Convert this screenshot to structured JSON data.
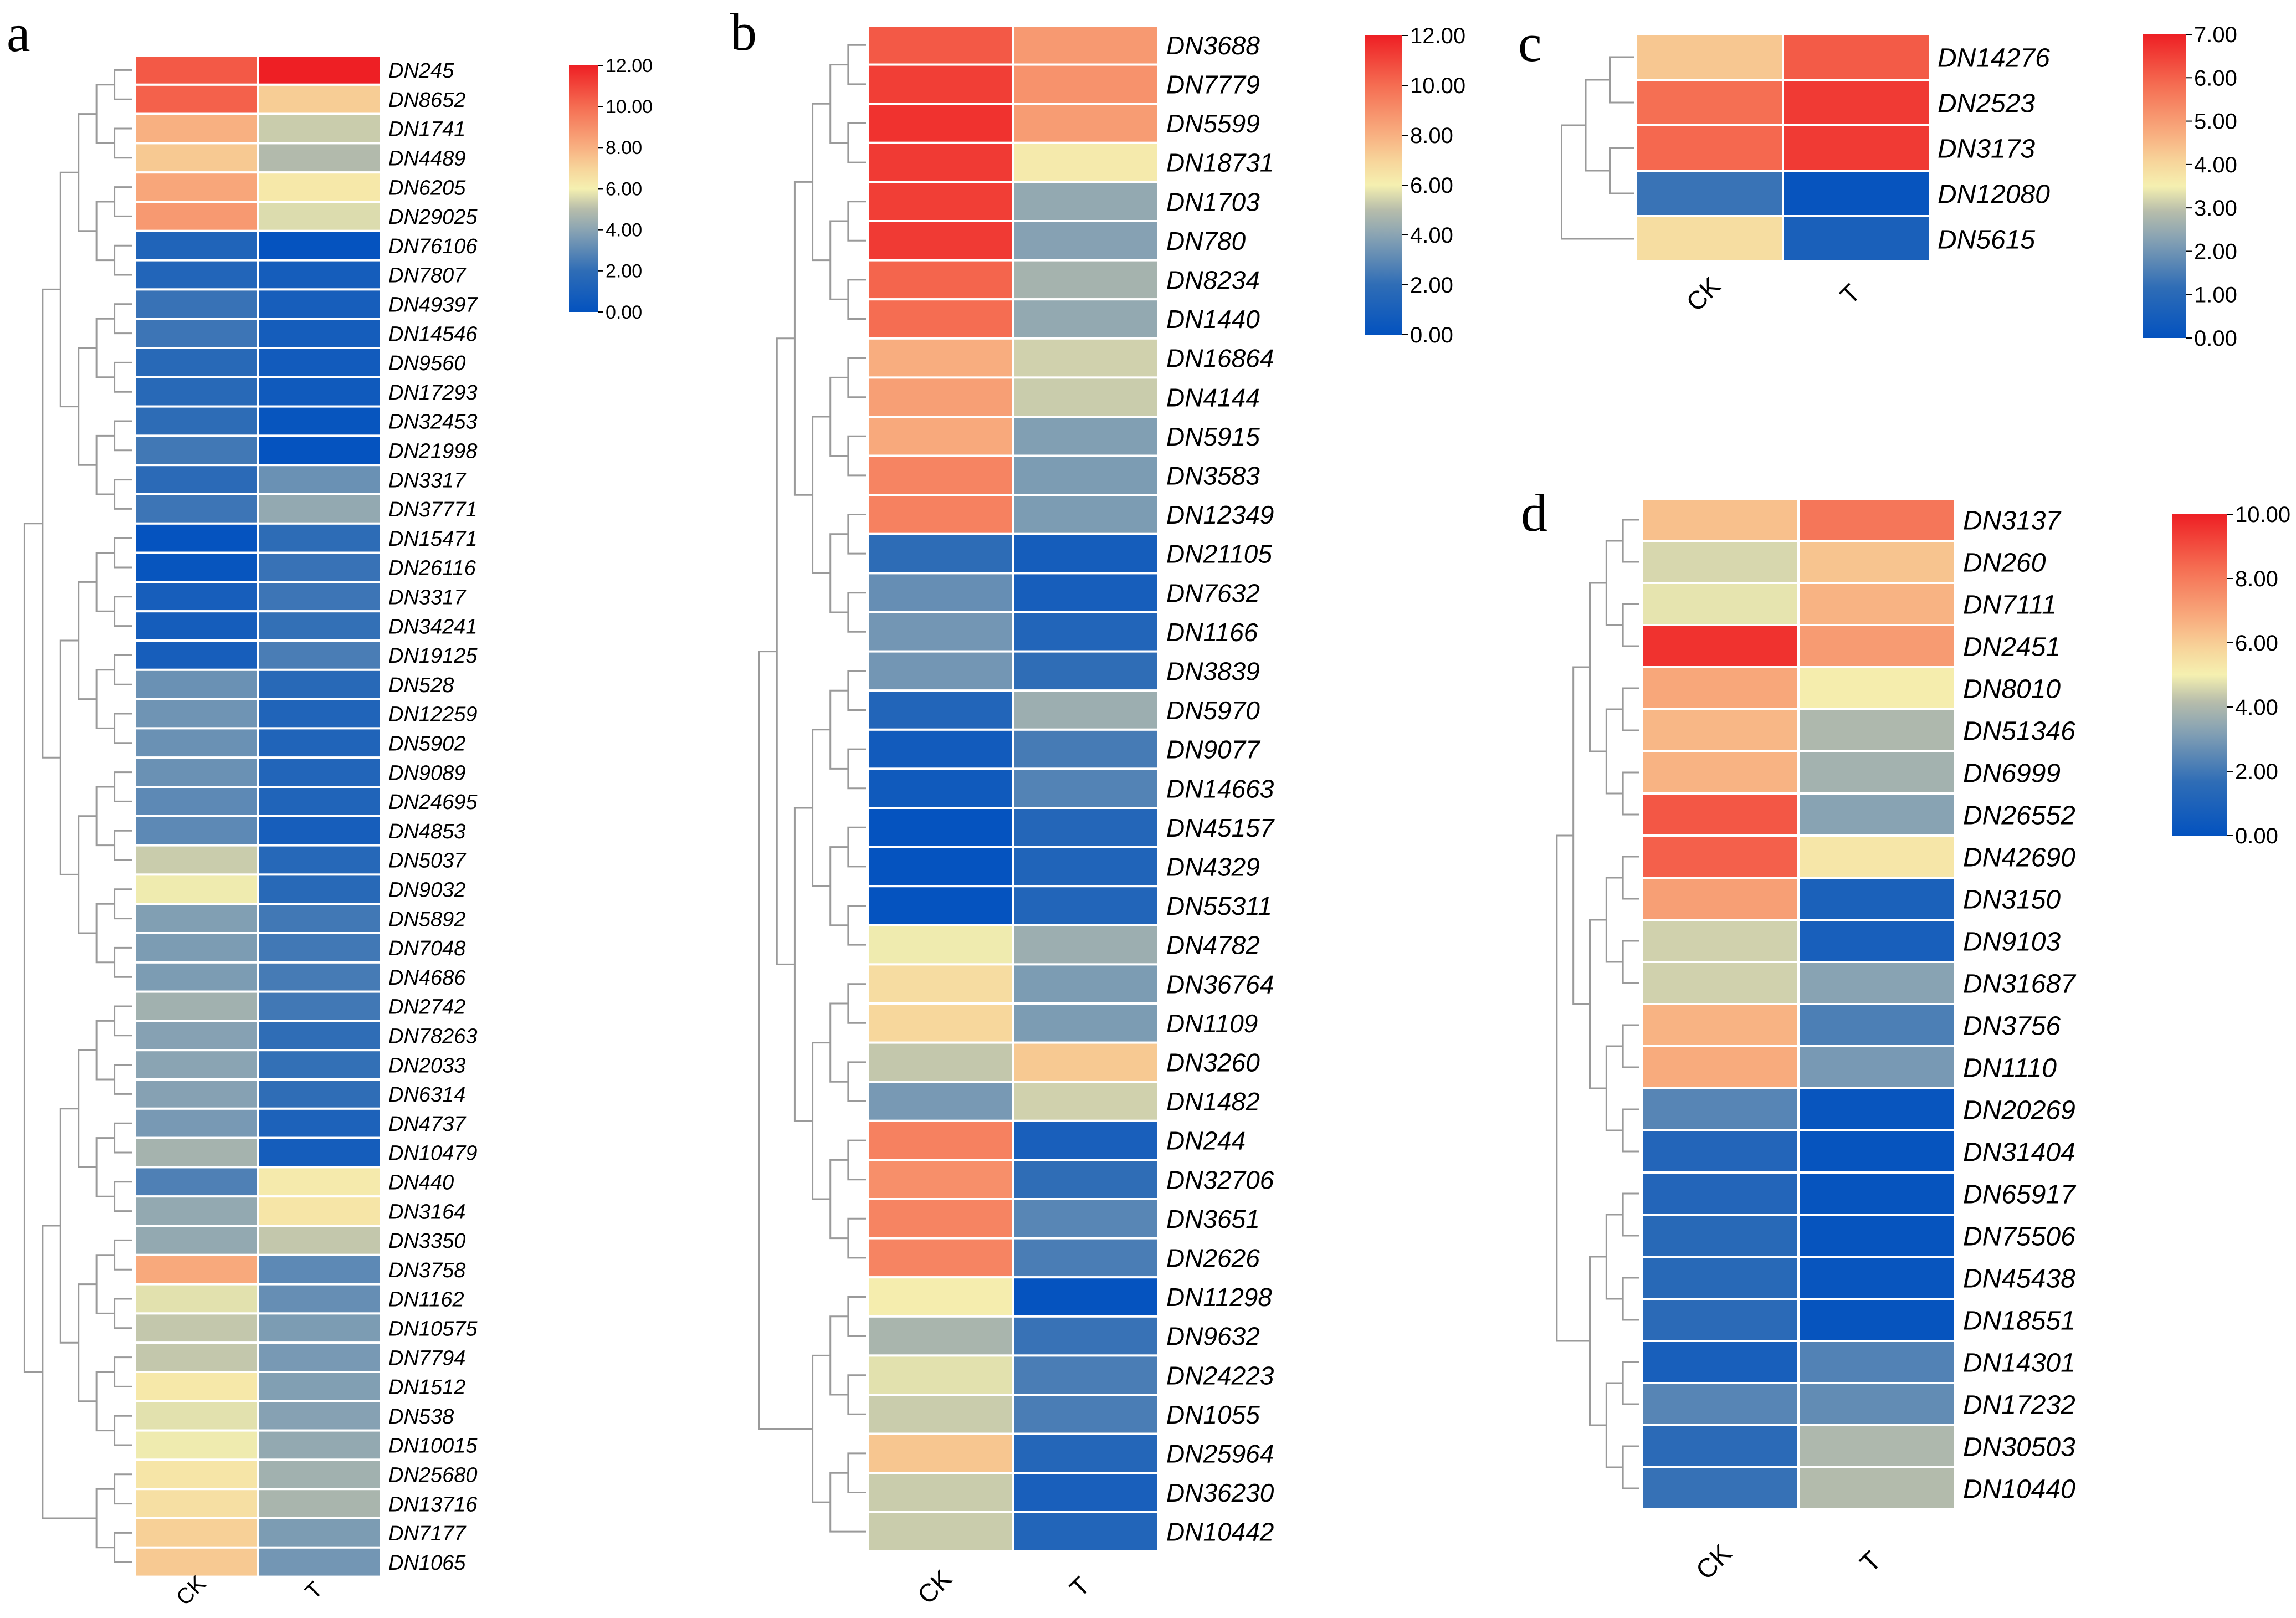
{
  "chart_data": [
    {
      "id": "a",
      "type": "heatmap",
      "panel_label": "a",
      "columns": [
        "CK",
        "T"
      ],
      "color_range": [
        0,
        12
      ],
      "colorbar_ticks": [
        "12.00",
        "10.00",
        "8.00",
        "6.00",
        "4.00",
        "2.00",
        "0.00"
      ],
      "rows": [
        {
          "label": "DN245",
          "values": [
            10.5,
            12.0
          ]
        },
        {
          "label": "DN8652",
          "values": [
            10.3,
            7.2
          ]
        },
        {
          "label": "DN1741",
          "values": [
            8.0,
            5.3
          ]
        },
        {
          "label": "DN4489",
          "values": [
            7.3,
            4.9
          ]
        },
        {
          "label": "DN6205",
          "values": [
            8.3,
            6.3
          ]
        },
        {
          "label": "DN29025",
          "values": [
            8.7,
            5.6
          ]
        },
        {
          "label": "DN76106",
          "values": [
            1.3,
            0.1
          ]
        },
        {
          "label": "DN7807",
          "values": [
            1.4,
            0.8
          ]
        },
        {
          "label": "DN49397",
          "values": [
            2.2,
            0.9
          ]
        },
        {
          "label": "DN14546",
          "values": [
            2.3,
            0.8
          ]
        },
        {
          "label": "DN9560",
          "values": [
            1.7,
            0.7
          ]
        },
        {
          "label": "DN17293",
          "values": [
            1.7,
            0.6
          ]
        },
        {
          "label": "DN32453",
          "values": [
            1.9,
            0.2
          ]
        },
        {
          "label": "DN21998",
          "values": [
            2.4,
            0.1
          ]
        },
        {
          "label": "DN3317",
          "values": [
            1.8,
            3.3
          ]
        },
        {
          "label": "DN37771",
          "values": [
            2.3,
            4.2
          ]
        },
        {
          "label": "DN15471",
          "values": [
            0.1,
            1.9
          ]
        },
        {
          "label": "DN26116",
          "values": [
            0.2,
            2.2
          ]
        },
        {
          "label": "DN3317",
          "values": [
            0.9,
            2.3
          ]
        },
        {
          "label": "DN34241",
          "values": [
            0.8,
            2.1
          ]
        },
        {
          "label": "DN19125",
          "values": [
            0.9,
            2.6
          ]
        },
        {
          "label": "DN528",
          "values": [
            3.3,
            1.7
          ]
        },
        {
          "label": "DN12259",
          "values": [
            3.4,
            1.3
          ]
        },
        {
          "label": "DN5902",
          "values": [
            3.3,
            1.3
          ]
        },
        {
          "label": "DN9089",
          "values": [
            3.3,
            1.4
          ]
        },
        {
          "label": "DN24695",
          "values": [
            3.0,
            1.3
          ]
        },
        {
          "label": "DN4853",
          "values": [
            3.0,
            0.9
          ]
        },
        {
          "label": "DN5037",
          "values": [
            5.3,
            1.6
          ]
        },
        {
          "label": "DN9032",
          "values": [
            5.9,
            1.7
          ]
        },
        {
          "label": "DN5892",
          "values": [
            3.8,
            2.4
          ]
        },
        {
          "label": "DN7048",
          "values": [
            3.7,
            2.4
          ]
        },
        {
          "label": "DN4686",
          "values": [
            3.7,
            2.5
          ]
        },
        {
          "label": "DN2742",
          "values": [
            4.5,
            2.4
          ]
        },
        {
          "label": "DN78263",
          "values": [
            3.9,
            2.0
          ]
        },
        {
          "label": "DN2033",
          "values": [
            4.0,
            2.1
          ]
        },
        {
          "label": "DN6314",
          "values": [
            3.9,
            2.0
          ]
        },
        {
          "label": "DN4737",
          "values": [
            3.6,
            1.2
          ]
        },
        {
          "label": "DN10479",
          "values": [
            4.6,
            0.8
          ]
        },
        {
          "label": "DN440",
          "values": [
            2.7,
            6.2
          ]
        },
        {
          "label": "DN3164",
          "values": [
            4.2,
            6.4
          ]
        },
        {
          "label": "DN3350",
          "values": [
            4.2,
            5.2
          ]
        },
        {
          "label": "DN3758",
          "values": [
            8.2,
            3.0
          ]
        },
        {
          "label": "DN1162",
          "values": [
            5.7,
            3.2
          ]
        },
        {
          "label": "DN10575",
          "values": [
            5.2,
            3.7
          ]
        },
        {
          "label": "DN7794",
          "values": [
            5.2,
            3.6
          ]
        },
        {
          "label": "DN1512",
          "values": [
            6.3,
            3.8
          ]
        },
        {
          "label": "DN538",
          "values": [
            5.7,
            3.9
          ]
        },
        {
          "label": "DN10015",
          "values": [
            5.9,
            4.2
          ]
        },
        {
          "label": "DN25680",
          "values": [
            6.4,
            4.5
          ]
        },
        {
          "label": "DN13716",
          "values": [
            6.6,
            4.7
          ]
        },
        {
          "label": "DN7177",
          "values": [
            7.1,
            3.7
          ]
        },
        {
          "label": "DN1065",
          "values": [
            7.3,
            3.5
          ]
        }
      ]
    },
    {
      "id": "b",
      "type": "heatmap",
      "panel_label": "b",
      "columns": [
        "CK",
        "T"
      ],
      "color_range": [
        0,
        12
      ],
      "colorbar_ticks": [
        "12.00",
        "10.00",
        "8.00",
        "6.00",
        "4.00",
        "2.00",
        "0.00"
      ],
      "rows": [
        {
          "label": "DN3688",
          "values": [
            10.5,
            8.7
          ]
        },
        {
          "label": "DN7779",
          "values": [
            11.2,
            8.9
          ]
        },
        {
          "label": "DN5599",
          "values": [
            11.5,
            8.6
          ]
        },
        {
          "label": "DN18731",
          "values": [
            11.3,
            6.2
          ]
        },
        {
          "label": "DN1703",
          "values": [
            11.2,
            4.2
          ]
        },
        {
          "label": "DN780",
          "values": [
            11.3,
            3.9
          ]
        },
        {
          "label": "DN8234",
          "values": [
            10.2,
            4.6
          ]
        },
        {
          "label": "DN1440",
          "values": [
            10.0,
            4.2
          ]
        },
        {
          "label": "DN16864",
          "values": [
            8.1,
            5.4
          ]
        },
        {
          "label": "DN4144",
          "values": [
            8.5,
            5.3
          ]
        },
        {
          "label": "DN5915",
          "values": [
            8.2,
            3.8
          ]
        },
        {
          "label": "DN3583",
          "values": [
            9.3,
            3.7
          ]
        },
        {
          "label": "DN12349",
          "values": [
            9.4,
            3.7
          ]
        },
        {
          "label": "DN21105",
          "values": [
            1.9,
            0.8
          ]
        },
        {
          "label": "DN7632",
          "values": [
            3.2,
            0.9
          ]
        },
        {
          "label": "DN1166",
          "values": [
            3.5,
            1.4
          ]
        },
        {
          "label": "DN3839",
          "values": [
            3.5,
            2.0
          ]
        },
        {
          "label": "DN5970",
          "values": [
            1.4,
            4.4
          ]
        },
        {
          "label": "DN9077",
          "values": [
            0.7,
            2.5
          ]
        },
        {
          "label": "DN14663",
          "values": [
            0.6,
            2.8
          ]
        },
        {
          "label": "DN45157",
          "values": [
            0.1,
            1.5
          ]
        },
        {
          "label": "DN4329",
          "values": [
            0.1,
            1.3
          ]
        },
        {
          "label": "DN55311",
          "values": [
            0.1,
            1.4
          ]
        },
        {
          "label": "DN4782",
          "values": [
            5.9,
            4.4
          ]
        },
        {
          "label": "DN36764",
          "values": [
            6.7,
            3.7
          ]
        },
        {
          "label": "DN1109",
          "values": [
            6.9,
            3.7
          ]
        },
        {
          "label": "DN3260",
          "values": [
            5.2,
            7.3
          ]
        },
        {
          "label": "DN1482",
          "values": [
            3.6,
            5.4
          ]
        },
        {
          "label": "DN244",
          "values": [
            9.4,
            1.0
          ]
        },
        {
          "label": "DN32706",
          "values": [
            9.0,
            2.0
          ]
        },
        {
          "label": "DN3651",
          "values": [
            9.3,
            2.9
          ]
        },
        {
          "label": "DN2626",
          "values": [
            9.3,
            2.6
          ]
        },
        {
          "label": "DN11298",
          "values": [
            6.1,
            0.1
          ]
        },
        {
          "label": "DN9632",
          "values": [
            4.7,
            2.2
          ]
        },
        {
          "label": "DN24223",
          "values": [
            5.7,
            2.6
          ]
        },
        {
          "label": "DN1055",
          "values": [
            5.3,
            2.6
          ]
        },
        {
          "label": "DN25964",
          "values": [
            7.4,
            1.5
          ]
        },
        {
          "label": "DN36230",
          "values": [
            5.3,
            1.0
          ]
        },
        {
          "label": "DN10442",
          "values": [
            5.3,
            1.4
          ]
        }
      ]
    },
    {
      "id": "c",
      "type": "heatmap",
      "panel_label": "c",
      "columns": [
        "CK",
        "T"
      ],
      "color_range": [
        0,
        7
      ],
      "colorbar_ticks": [
        "7.00",
        "6.00",
        "5.00",
        "4.00",
        "3.00",
        "2.00",
        "1.00",
        "0.00"
      ],
      "rows": [
        {
          "label": "DN14276",
          "values": [
            4.3,
            6.1
          ]
        },
        {
          "label": "DN2523",
          "values": [
            5.8,
            6.6
          ]
        },
        {
          "label": "DN3173",
          "values": [
            5.9,
            6.6
          ]
        },
        {
          "label": "DN12080",
          "values": [
            1.3,
            0.1
          ]
        },
        {
          "label": "DN5615",
          "values": [
            3.9,
            0.6
          ]
        }
      ]
    },
    {
      "id": "d",
      "type": "heatmap",
      "panel_label": "d",
      "columns": [
        "CK",
        "T"
      ],
      "color_range": [
        0,
        10
      ],
      "colorbar_ticks": [
        "10.00",
        "8.00",
        "6.00",
        "4.00",
        "2.00",
        "0.00"
      ],
      "rows": [
        {
          "label": "DN3137",
          "values": [
            6.3,
            8.1
          ]
        },
        {
          "label": "DN260",
          "values": [
            4.6,
            6.2
          ]
        },
        {
          "label": "DN7111",
          "values": [
            4.8,
            6.6
          ]
        },
        {
          "label": "DN2451",
          "values": [
            9.6,
            7.2
          ]
        },
        {
          "label": "DN8010",
          "values": [
            6.9,
            5.1
          ]
        },
        {
          "label": "DN51346",
          "values": [
            6.5,
            4.0
          ]
        },
        {
          "label": "DN6999",
          "values": [
            6.6,
            3.8
          ]
        },
        {
          "label": "DN26552",
          "values": [
            8.8,
            3.3
          ]
        },
        {
          "label": "DN42690",
          "values": [
            8.6,
            5.3
          ]
        },
        {
          "label": "DN3150",
          "values": [
            7.1,
            0.9
          ]
        },
        {
          "label": "DN9103",
          "values": [
            4.5,
            0.8
          ]
        },
        {
          "label": "DN31687",
          "values": [
            4.5,
            3.3
          ]
        },
        {
          "label": "DN3756",
          "values": [
            6.6,
            2.2
          ]
        },
        {
          "label": "DN1110",
          "values": [
            6.8,
            3.0
          ]
        },
        {
          "label": "DN20269",
          "values": [
            2.4,
            0.2
          ]
        },
        {
          "label": "DN31404",
          "values": [
            1.2,
            0.1
          ]
        },
        {
          "label": "DN65917",
          "values": [
            1.2,
            0.1
          ]
        },
        {
          "label": "DN75506",
          "values": [
            1.4,
            0.1
          ]
        },
        {
          "label": "DN45438",
          "values": [
            1.4,
            0.2
          ]
        },
        {
          "label": "DN18551",
          "values": [
            1.5,
            0.1
          ]
        },
        {
          "label": "DN14301",
          "values": [
            0.8,
            2.3
          ]
        },
        {
          "label": "DN17232",
          "values": [
            2.4,
            2.6
          ]
        },
        {
          "label": "DN30503",
          "values": [
            1.5,
            4.0
          ]
        },
        {
          "label": "DN10440",
          "values": [
            1.8,
            4.1
          ]
        }
      ]
    }
  ]
}
